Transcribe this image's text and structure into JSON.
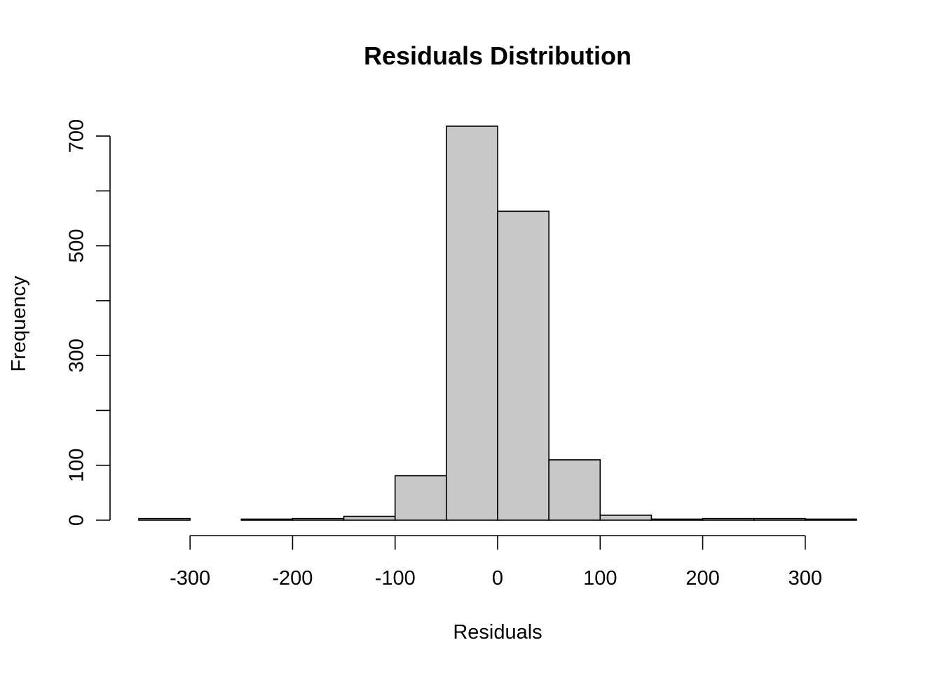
{
  "chart_data": {
    "type": "bar",
    "title": "Residuals Distribution",
    "xlabel": "Residuals",
    "ylabel": "Frequency",
    "bin_width": 50,
    "bins": [
      {
        "start": -350,
        "end": -300,
        "count": 3
      },
      {
        "start": -300,
        "end": -250,
        "count": 0
      },
      {
        "start": -250,
        "end": -200,
        "count": 2
      },
      {
        "start": -200,
        "end": -150,
        "count": 3
      },
      {
        "start": -150,
        "end": -100,
        "count": 7
      },
      {
        "start": -100,
        "end": -50,
        "count": 81
      },
      {
        "start": -50,
        "end": 0,
        "count": 718
      },
      {
        "start": 0,
        "end": 50,
        "count": 563
      },
      {
        "start": 50,
        "end": 100,
        "count": 110
      },
      {
        "start": 100,
        "end": 150,
        "count": 9
      },
      {
        "start": 150,
        "end": 200,
        "count": 2
      },
      {
        "start": 200,
        "end": 250,
        "count": 3
      },
      {
        "start": 250,
        "end": 300,
        "count": 3
      },
      {
        "start": 300,
        "end": 350,
        "count": 2
      }
    ],
    "xlim": [
      -350,
      350
    ],
    "ylim": [
      0,
      718
    ],
    "x_ticks": [
      -300,
      -200,
      -100,
      0,
      100,
      200,
      300
    ],
    "x_tick_labels": [
      "-300",
      "-200",
      "-100",
      "0",
      "100",
      "200",
      "300"
    ],
    "y_ticks": [
      0,
      100,
      200,
      300,
      400,
      500,
      600,
      700
    ],
    "y_tick_labels": [
      "0",
      "100",
      "",
      "300",
      "",
      "500",
      "",
      "700"
    ],
    "bar_fill": "#c8c8c8",
    "bar_edge": "#000000",
    "grid": false,
    "legend": "none"
  }
}
